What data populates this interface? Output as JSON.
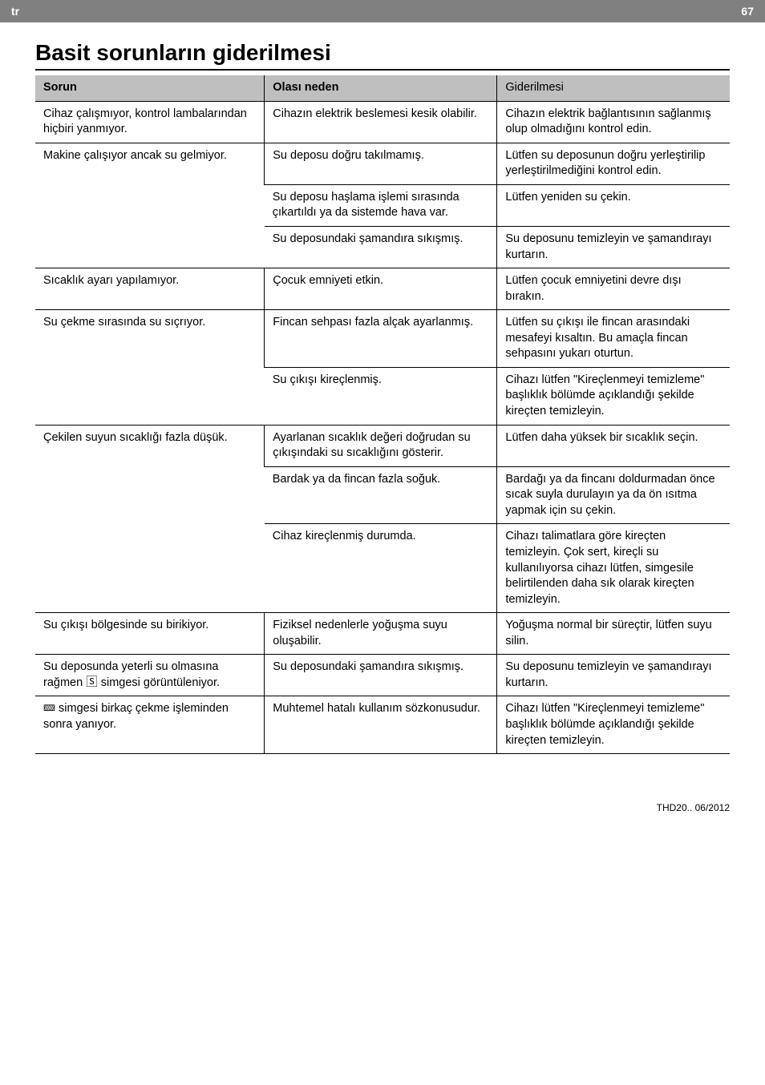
{
  "header": {
    "lang": "tr",
    "page": "67"
  },
  "title": "Basit sorunların giderilmesi",
  "table": {
    "headers": [
      "Sorun",
      "Olası neden",
      "Giderilmesi"
    ],
    "groups": [
      {
        "problem": "Cihaz çalışmıyor, kontrol lambalarından hiçbiri yanmıyor.",
        "rows": [
          {
            "cause": "Cihazın elektrik beslemesi kesik olabilir.",
            "fix": "Cihazın elektrik bağlantısının sağlanmış olup olmadığını kontrol edin."
          }
        ]
      },
      {
        "problem": "Makine çalışıyor ancak su gelmiyor.",
        "rows": [
          {
            "cause": "Su deposu doğru takılmamış.",
            "fix": "Lütfen su deposunun doğru yerleştirilip yerleştirilmediğini kontrol edin."
          },
          {
            "cause": "Su deposu haşlama işlemi sırasında çıkartıldı ya da sistemde hava var.",
            "fix": "Lütfen yeniden su çekin."
          },
          {
            "cause": "Su deposundaki şamandıra sıkışmış.",
            "fix": "Su deposunu temizleyin ve şamandırayı kurtarın."
          }
        ]
      },
      {
        "problem": "Sıcaklık ayarı yapılamıyor.",
        "rows": [
          {
            "cause": "Çocuk emniyeti etkin.",
            "fix": "Lütfen çocuk emniyetini devre dışı bırakın."
          }
        ]
      },
      {
        "problem": "Su çekme sırasında su sıçrıyor.",
        "rows": [
          {
            "cause": "Fincan sehpası fazla alçak ayarlanmış.",
            "fix": "Lütfen su çıkışı ile fincan arasındaki mesafeyi kısaltın. Bu amaçla fincan sehpasını yukarı oturtun."
          },
          {
            "cause": "Su çıkışı kireçlenmiş.",
            "fix": "Cihazı lütfen \"Kireçlenmeyi temizleme\" başlıklık bölümde açıklandığı şekilde kireçten temizleyin."
          }
        ]
      },
      {
        "problem": "Çekilen suyun sıcaklığı fazla düşük.",
        "rows": [
          {
            "cause": "Ayarlanan sıcaklık değeri doğrudan su çıkışındaki su sıcaklığını gösterir.",
            "fix": "Lütfen daha yüksek bir sıcaklık seçin."
          },
          {
            "cause": "Bardak ya da fincan fazla soğuk.",
            "fix": "Bardağı ya da fincanı doldurmadan önce sıcak suyla durulayın ya da ön ısıtma yapmak için su çekin."
          },
          {
            "cause": "Cihaz kireçlenmiş durumda.",
            "fix": "Cihazı talimatlara göre kireçten temizleyin. Çok sert, kireçli su kullanılıyorsa cihazı lütfen, simgesile belirtilenden daha sık olarak kireçten temizleyin."
          }
        ]
      },
      {
        "problem": "Su çıkışı bölgesinde su birikiyor.",
        "rows": [
          {
            "cause": "Fiziksel nedenlerle yoğuşma suyu oluşabilir.",
            "fix": "Yoğuşma normal bir süreçtir, lütfen suyu silin."
          }
        ]
      },
      {
        "problem_prefix": "Su deposunda yeterli su olmasına rağmen ",
        "problem_icon": "🅂",
        "problem_icon_name": "tank-icon",
        "problem_suffix": " simgesi görüntüleniyor.",
        "rows": [
          {
            "cause": "Su deposundaki şamandıra sıkışmış.",
            "fix": "Su deposunu temizleyin ve şamandırayı kurtarın."
          }
        ]
      },
      {
        "problem_icon": "🝙",
        "problem_icon_name": "calc-icon",
        "problem_suffix": " simgesi birkaç çekme işleminden sonra yanıyor.",
        "rows": [
          {
            "cause": "Muhtemel hatalı kullanım sözkonusudur.",
            "fix": "Cihazı lütfen \"Kireçlenmeyi temizleme\" başlıklık bölümde açıklandığı şekilde kireçten temizleyin."
          }
        ]
      }
    ]
  },
  "footer": "THD20..  06/2012",
  "colors": {
    "header_bg": "#808080",
    "header_text": "#ffffff",
    "thead_bg": "#bfbfbf",
    "text": "#000000",
    "border": "#000000"
  }
}
